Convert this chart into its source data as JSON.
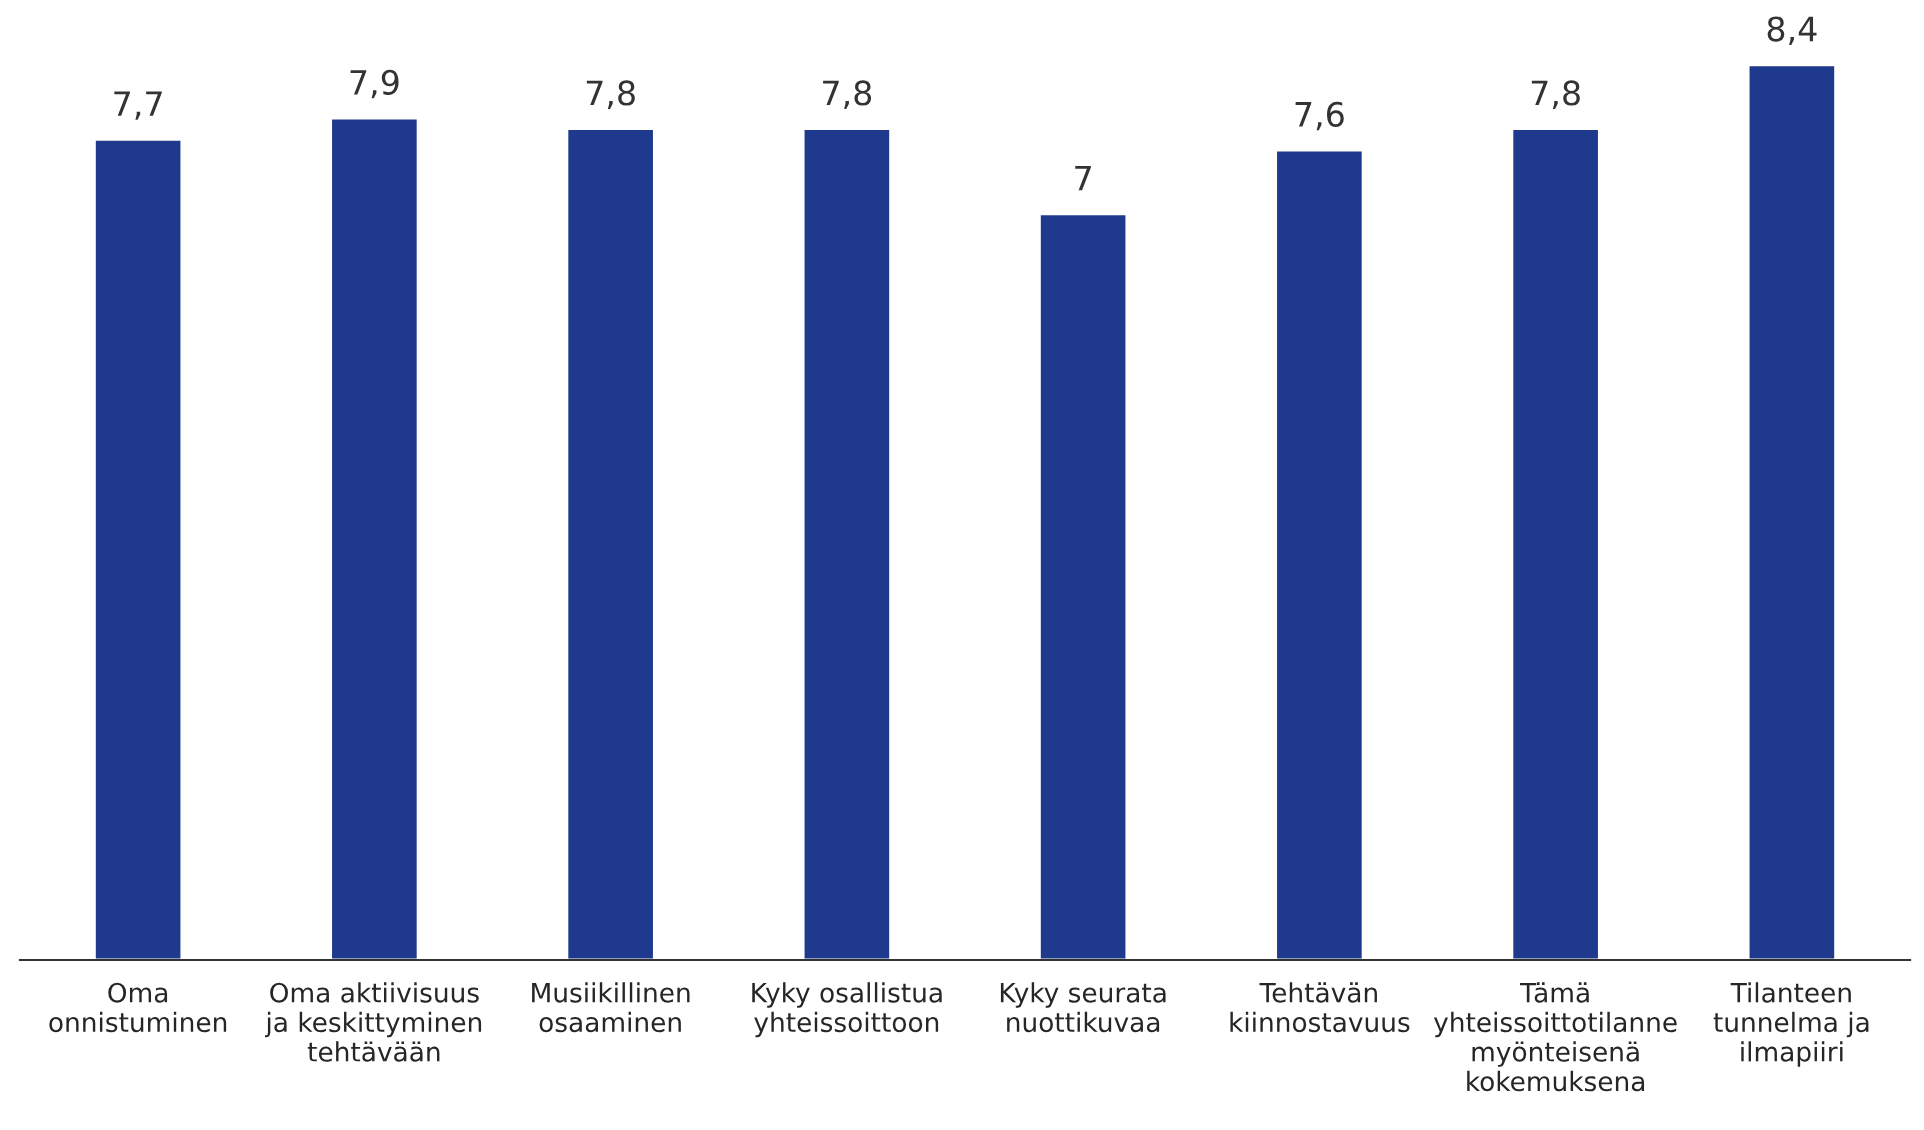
{
  "chart_data": {
    "type": "bar",
    "categories": [
      "Oma\nonnistuminen",
      "Oma aktiivisuus\nja keskittyminen\ntehtävään",
      "Musiikillinen\nosaaminen",
      "Kyky osallistua\nyhteissoittoon",
      "Kyky seurata\nnuottikuvaa",
      "Tehtävän\nkiinnostavuus",
      "Tämä\nyhteissoittotilanne\nmyönteisenä\nkokemuksena",
      "Tilanteen\ntunnelma ja\nilmapiiri"
    ],
    "values": [
      7.7,
      7.9,
      7.8,
      7.8,
      7,
      7.6,
      7.8,
      8.4
    ],
    "value_labels": [
      "7,7",
      "7,9",
      "7,8",
      "7,8",
      "7",
      "7,6",
      "7,8",
      "8,4"
    ],
    "color": "#1f3a8c",
    "tick_labels": "x",
    "grid": false,
    "legend": false
  }
}
